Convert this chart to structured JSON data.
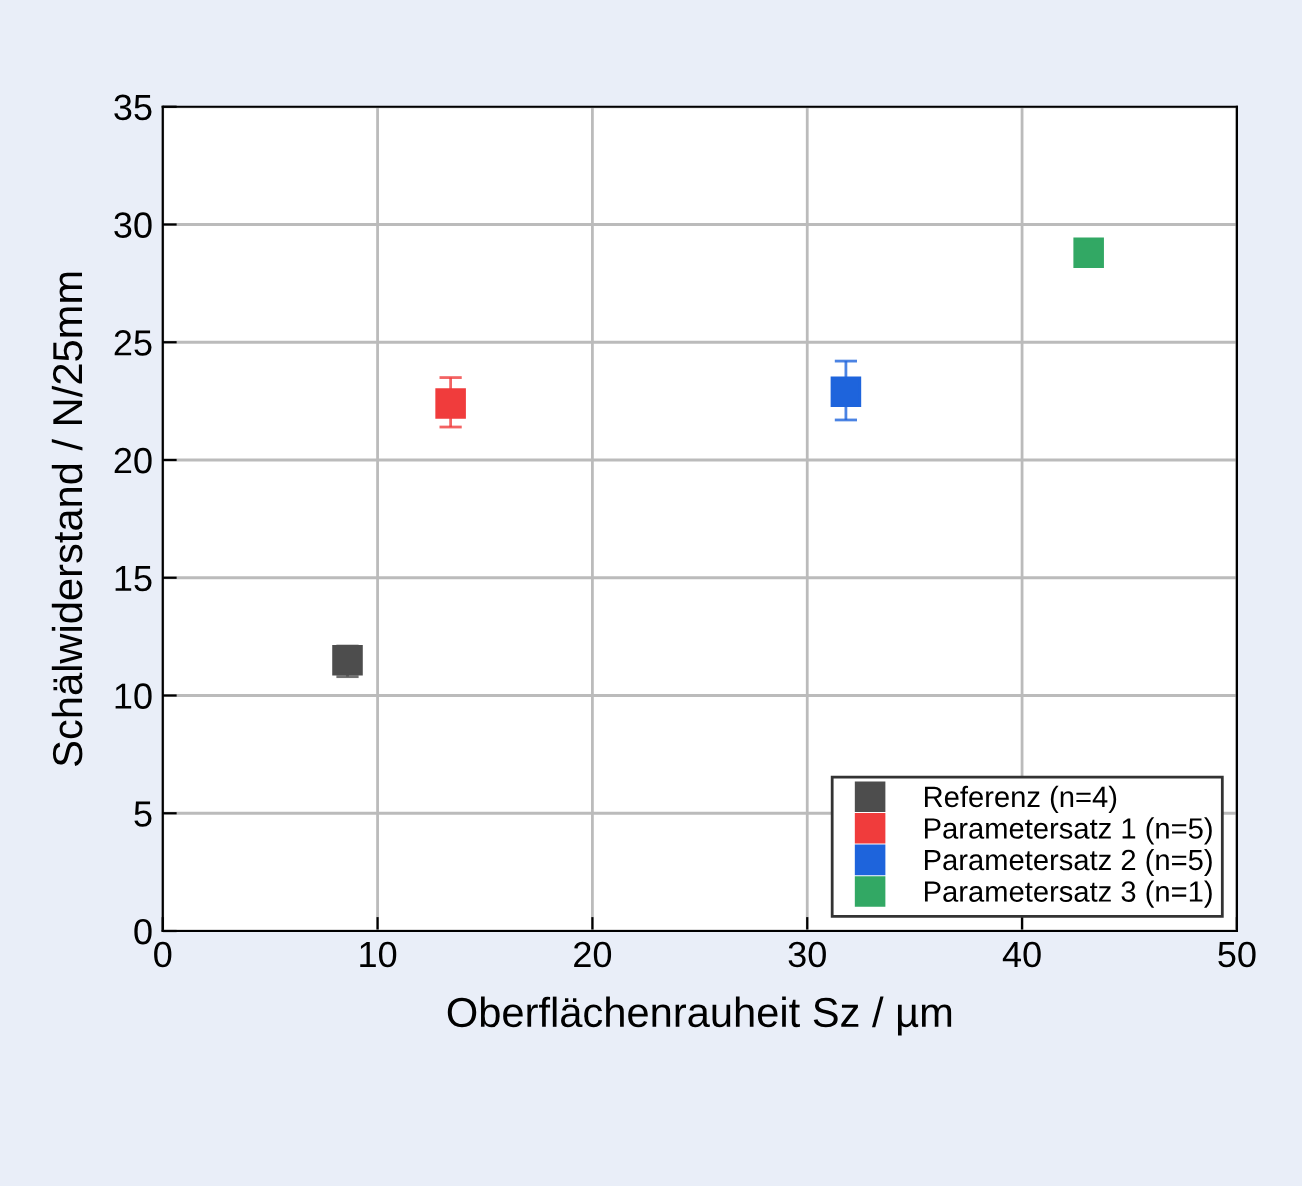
{
  "chart_data": {
    "type": "scatter",
    "xlabel": "Oberflächenrauheit Sz / µm",
    "ylabel": "Schälwiderstand / N/25mm",
    "xlim": [
      0,
      50
    ],
    "xticks": [
      0,
      10,
      20,
      30,
      40,
      50
    ],
    "ylim": [
      0,
      35
    ],
    "yticks": [
      0,
      5,
      10,
      15,
      20,
      25,
      30,
      35
    ],
    "grid": true,
    "legend": "bottom right",
    "marker": "square",
    "series": [
      {
        "name": "Referenz (n=4)",
        "color": "#4d4d4d",
        "x": [
          8.6
        ],
        "values": [
          11.5
        ],
        "errors": [
          [
            10.8,
            12.1
          ]
        ]
      },
      {
        "name": "Parametersatz 1 (n=5)",
        "color": "#f03c3c",
        "x": [
          13.4
        ],
        "values": [
          22.4
        ],
        "errors": [
          [
            21.4,
            23.5
          ]
        ]
      },
      {
        "name": "Parametersatz 2 (n=5)",
        "color": "#1e64dc",
        "x": [
          31.8
        ],
        "values": [
          22.9
        ],
        "errors": [
          [
            21.7,
            24.2
          ]
        ]
      },
      {
        "name": "Parametersatz 3 (n=1)",
        "color": "#32a864",
        "x": [
          43.1
        ],
        "values": [
          28.8
        ]
      }
    ]
  }
}
